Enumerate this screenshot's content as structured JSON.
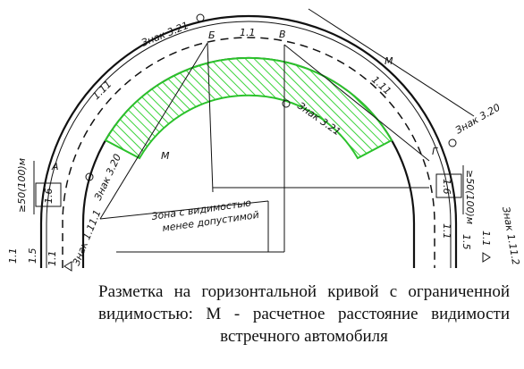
{
  "labels": {
    "sign_top": "Знак 3.21",
    "point_b": "Б",
    "line_top": "1.1",
    "point_v": "В",
    "m_top": "М",
    "line_left_arc": "1.11",
    "line_right_arc": "1.11",
    "sign_inner": "Знак 3.21",
    "sign_right": "Знак 3.20",
    "point_g": "Г",
    "point_a": "А",
    "dist_left": "≥50(100)м",
    "line_left_16": "1.6",
    "sign_left": "Знак 3.20",
    "m_center": "М",
    "zone_line1": "Зона с видимостью",
    "zone_line2": "менее допустимой",
    "sign_bottom_left": "Знак 1.11.1",
    "left_11a": "1.1",
    "left_15": "1.5",
    "left_11b": "1.1",
    "dist_right": "≥50(100)м",
    "line_right_16": "1.6",
    "right_11a": "1.1",
    "right_15": "1.5",
    "right_11b": "1.1",
    "sign_bottom_right": "Знак 1.11.2"
  },
  "caption": "Разметка на горизонтальной кривой с ограниченной видимостью: М - расчетное расстояние видимости встречного автомобиля"
}
